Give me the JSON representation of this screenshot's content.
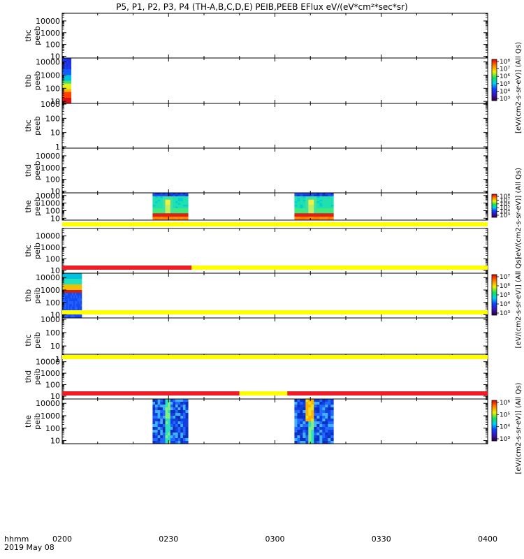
{
  "title": "P5, P1, P2, P3, P4 (TH-A,B,C,D,E) PEIB,PEEB EFlux eV/(eV*cm²*sec*sr)",
  "time_axis": {
    "label": "hhmm",
    "date": "2019 May 08",
    "ticks": [
      "0200",
      "0230",
      "0300",
      "0330",
      "0400"
    ],
    "range_minutes": [
      0,
      120
    ],
    "tick_minutes": [
      0,
      30,
      60,
      90,
      120
    ]
  },
  "colorbar_unit": "[eV/(cm2-s-sr-eV)] (All Qs)",
  "colors": {
    "flag_yellow": "#ffff00",
    "flag_red": "#ee1c24",
    "frame": "#000000",
    "spectrum_blue": "#1f3fd0",
    "spectrum_cyan": "#00e0e0",
    "spectrum_green": "#22e070",
    "spectrum_orange": "#ff7a00",
    "spectrum_red": "#d81010"
  },
  "chart_data": {
    "type": "heatmap",
    "scale": "log",
    "panels": [
      {
        "probe": "thc",
        "instrument": "peeb",
        "ticks": [
          "10000",
          "1000",
          "100",
          "10"
        ],
        "log_min": 0.85,
        "log_max": 4.65,
        "blocks": []
      },
      {
        "probe": "thb",
        "instrument": "peeb",
        "ticks": [
          "10000",
          "1000",
          "100",
          "10"
        ],
        "log_min": 0.85,
        "log_max": 4.3,
        "blocks": [
          {
            "t0": 0,
            "t1": 2.5,
            "kind": "peeb_thb"
          }
        ]
      },
      {
        "probe": "thc",
        "instrument": "peeb",
        "ticks": [
          "1000",
          "100",
          "10",
          "1"
        ],
        "log_min": -0.1,
        "log_max": 3.05,
        "blocks": []
      },
      {
        "probe": "thd",
        "instrument": "peeb",
        "ticks": [
          "10000",
          "1000",
          "100",
          "10"
        ],
        "log_min": 0.85,
        "log_max": 4.65,
        "blocks": []
      },
      {
        "probe": "the",
        "instrument": "peeb",
        "ticks": [
          "10000",
          "1000",
          "100",
          "10"
        ],
        "log_min": 0.75,
        "log_max": 4.35,
        "blocks": [
          {
            "t0": 25.5,
            "t1": 35.5,
            "kind": "peeb_the_1"
          },
          {
            "t0": 65.5,
            "t1": 76.5,
            "kind": "peeb_the_2"
          }
        ]
      },
      {
        "probe": "thc",
        "instrument": "peib",
        "ticks": [
          "10000",
          "1000",
          "100",
          "10"
        ],
        "log_min": 0.75,
        "log_max": 4.65,
        "blocks": []
      },
      {
        "probe": "thb",
        "instrument": "peib",
        "ticks": [
          "10000",
          "1000",
          "100",
          "10"
        ],
        "log_min": 0.75,
        "log_max": 4.35,
        "blocks": [
          {
            "t0": 0,
            "t1": 5.5,
            "kind": "peib_thb"
          }
        ]
      },
      {
        "probe": "thc",
        "instrument": "peib",
        "ticks": [
          "1000",
          "100",
          "10",
          "1"
        ],
        "log_min": -0.25,
        "log_max": 3.1,
        "blocks": []
      },
      {
        "probe": "thd",
        "instrument": "peib",
        "ticks": [
          "10000",
          "1000",
          "100",
          "10"
        ],
        "log_min": 0.75,
        "log_max": 4.65,
        "blocks": []
      },
      {
        "probe": "the",
        "instrument": "peib",
        "ticks": [
          "10000",
          "1000",
          "100",
          "10"
        ],
        "log_min": 0.75,
        "log_max": 4.35,
        "blocks": [
          {
            "t0": 25.5,
            "t1": 35.5,
            "kind": "peib_the_1"
          },
          {
            "t0": 65.5,
            "t1": 76.5,
            "kind": "peib_the_2"
          }
        ]
      }
    ],
    "flag_bars": [
      {
        "after_panel": 4,
        "segments": [
          {
            "t0": 0,
            "t1": 120,
            "color": "yellow"
          }
        ]
      },
      {
        "after_panel": 5,
        "segments": [
          {
            "t0": 0,
            "t1": 36.5,
            "color": "red"
          },
          {
            "t0": 36.5,
            "t1": 120,
            "color": "yellow"
          }
        ]
      },
      {
        "after_panel": 6,
        "segments": [
          {
            "t0": 0,
            "t1": 120,
            "color": "yellow"
          }
        ]
      },
      {
        "after_panel": 7,
        "segments": [
          {
            "t0": 0,
            "t1": 120,
            "color": "yellow"
          }
        ]
      },
      {
        "after_panel": 8,
        "segments": [
          {
            "t0": 0,
            "t1": 50,
            "color": "red"
          },
          {
            "t0": 50,
            "t1": 63.5,
            "color": "yellow"
          },
          {
            "t0": 63.5,
            "t1": 120,
            "color": "red"
          }
        ]
      }
    ],
    "colorbars": [
      {
        "beside_panel": 1,
        "labels": [
          "10⁸",
          "10⁷",
          "10⁶",
          "10⁵",
          "10⁴",
          "10³"
        ]
      },
      {
        "beside_panel": 4,
        "labels": [
          "10⁸",
          "10⁷",
          "10⁶",
          "10⁵",
          "10⁴",
          "10³"
        ]
      },
      {
        "beside_panel": 6,
        "labels": [
          "10⁷",
          "10⁶",
          "10⁵",
          "10⁴",
          "10³"
        ]
      },
      {
        "beside_panel": 9,
        "labels": [
          "10⁶",
          "10⁵",
          "10⁴",
          "10³"
        ]
      }
    ]
  }
}
